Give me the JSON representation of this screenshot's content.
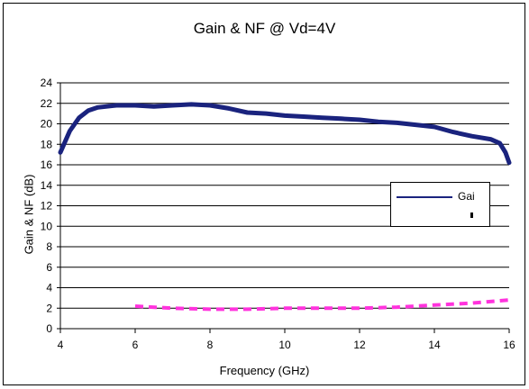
{
  "chart_data": {
    "type": "line",
    "title": "Gain & NF @ Vd=4V",
    "xlabel": "Frequency (GHz)",
    "ylabel": "Gain & NF (dB)",
    "xlim": [
      4,
      16
    ],
    "ylim": [
      0,
      24
    ],
    "xticks": [
      4,
      6,
      8,
      10,
      12,
      14,
      16
    ],
    "yticks": [
      0,
      2,
      4,
      6,
      8,
      10,
      12,
      14,
      16,
      18,
      20,
      22,
      24
    ],
    "grid": "horizontal",
    "legend_position": "right",
    "series": [
      {
        "name": "Gai",
        "color": "#1a237e",
        "style": "solid",
        "x": [
          4.0,
          4.25,
          4.5,
          4.75,
          5.0,
          5.5,
          6.0,
          6.5,
          7.0,
          7.5,
          8.0,
          8.5,
          9.0,
          9.5,
          10.0,
          10.5,
          11.0,
          11.5,
          12.0,
          12.5,
          13.0,
          13.5,
          14.0,
          14.5,
          15.0,
          15.5,
          15.75,
          15.9,
          16.0
        ],
        "y": [
          17.2,
          19.3,
          20.6,
          21.3,
          21.6,
          21.8,
          21.8,
          21.7,
          21.8,
          21.9,
          21.8,
          21.5,
          21.1,
          21.0,
          20.8,
          20.7,
          20.6,
          20.5,
          20.4,
          20.2,
          20.1,
          19.9,
          19.7,
          19.2,
          18.8,
          18.5,
          18.1,
          17.2,
          16.2
        ]
      },
      {
        "name": "",
        "color": "#ff33dd",
        "style": "dashed",
        "x": [
          6.0,
          7.0,
          8.0,
          9.0,
          10.0,
          11.0,
          12.0,
          13.0,
          14.0,
          15.0,
          16.0
        ],
        "y": [
          2.2,
          2.0,
          1.9,
          1.9,
          2.0,
          2.0,
          2.0,
          2.1,
          2.3,
          2.5,
          2.8
        ]
      }
    ]
  }
}
